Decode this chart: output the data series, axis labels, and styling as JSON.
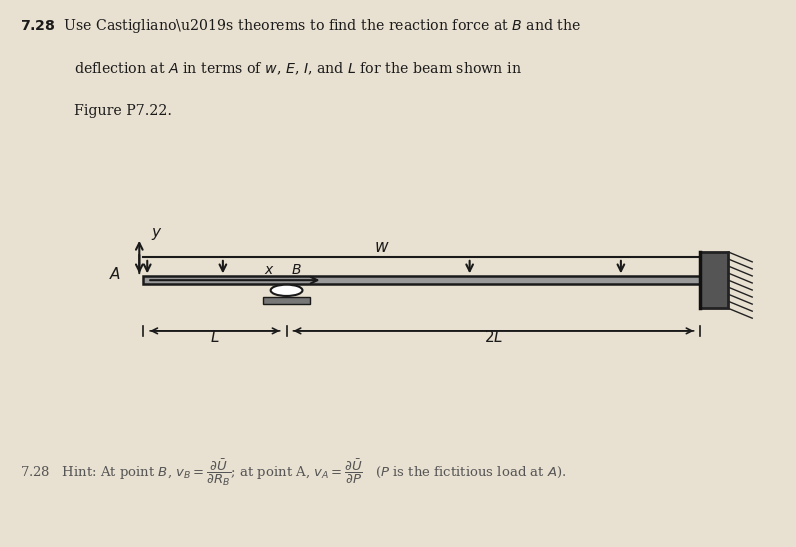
{
  "bg_top": "#e8e0d0",
  "bg_diagram": "#c8b898",
  "bg_bottom": "#ddd8c8",
  "text_color": "#1a1a1a",
  "hint_color": "#666666",
  "beam_color": "#1a1a1a",
  "beam_fill": "#888888",
  "wall_fill": "#555555",
  "support_fill": "#777777"
}
